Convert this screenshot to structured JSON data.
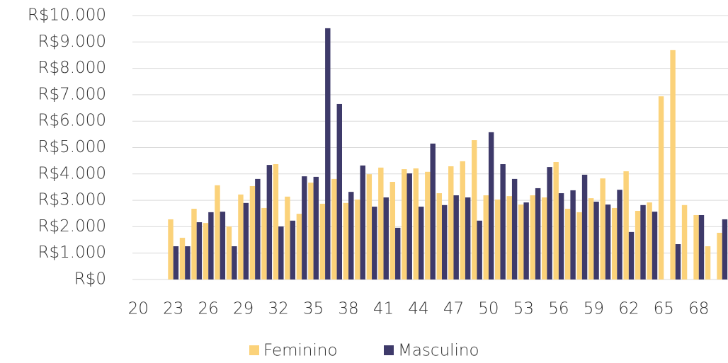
{
  "chart_data": {
    "type": "bar",
    "categories": [
      "20",
      null,
      null,
      "23",
      null,
      null,
      "26",
      null,
      null,
      "29",
      null,
      null,
      "32",
      null,
      null,
      "35",
      null,
      null,
      "38",
      null,
      null,
      "41",
      null,
      null,
      "44",
      null,
      null,
      "47",
      null,
      null,
      "50",
      null,
      null,
      "53",
      null,
      null,
      "56",
      null,
      null,
      "59",
      null,
      null,
      "62",
      null,
      null,
      "65",
      null,
      null,
      "68",
      null,
      null
    ],
    "series": [
      {
        "name": "Feminino",
        "color": "#fbd27a",
        "values": [
          null,
          null,
          null,
          2280,
          1580,
          2680,
          2140,
          3570,
          2010,
          3220,
          3540,
          2710,
          4370,
          3140,
          2490,
          3670,
          2870,
          3810,
          2900,
          3030,
          3990,
          4240,
          3700,
          4180,
          4210,
          4080,
          3270,
          4290,
          4480,
          5280,
          3190,
          3030,
          3160,
          2840,
          3190,
          3110,
          4450,
          2680,
          2550,
          3080,
          3830,
          2710,
          4100,
          2600,
          2920,
          6940,
          8690,
          2820,
          2440,
          1260,
          1770
        ]
      },
      {
        "name": "Masculino",
        "color": "#3e3a6a",
        "values": [
          null,
          null,
          null,
          1260,
          1260,
          2170,
          2550,
          2570,
          1260,
          2900,
          3810,
          4340,
          2010,
          2230,
          3910,
          3890,
          9520,
          6650,
          3320,
          4320,
          2760,
          3110,
          1960,
          4020,
          2760,
          5150,
          2820,
          3190,
          3110,
          2230,
          5580,
          4370,
          3810,
          2920,
          3460,
          4260,
          3270,
          3380,
          3970,
          2950,
          2840,
          3400,
          1800,
          2820,
          2570,
          null,
          1340,
          null,
          2440,
          null,
          2280
        ]
      }
    ],
    "ylim": [
      0,
      10000
    ],
    "yticks": [
      {
        "value": 0,
        "label": "R$0"
      },
      {
        "value": 1000,
        "label": "R$1.000"
      },
      {
        "value": 2000,
        "label": "R$2.000"
      },
      {
        "value": 3000,
        "label": "R$3.000"
      },
      {
        "value": 4000,
        "label": "R$4.000"
      },
      {
        "value": 5000,
        "label": "R$5.000"
      },
      {
        "value": 6000,
        "label": "R$6.000"
      },
      {
        "value": 7000,
        "label": "R$7.000"
      },
      {
        "value": 8000,
        "label": "R$8.000"
      },
      {
        "value": 9000,
        "label": "R$9.000"
      },
      {
        "value": 10000,
        "label": "R$10.000"
      }
    ],
    "grid": true,
    "legend": "bottom"
  }
}
